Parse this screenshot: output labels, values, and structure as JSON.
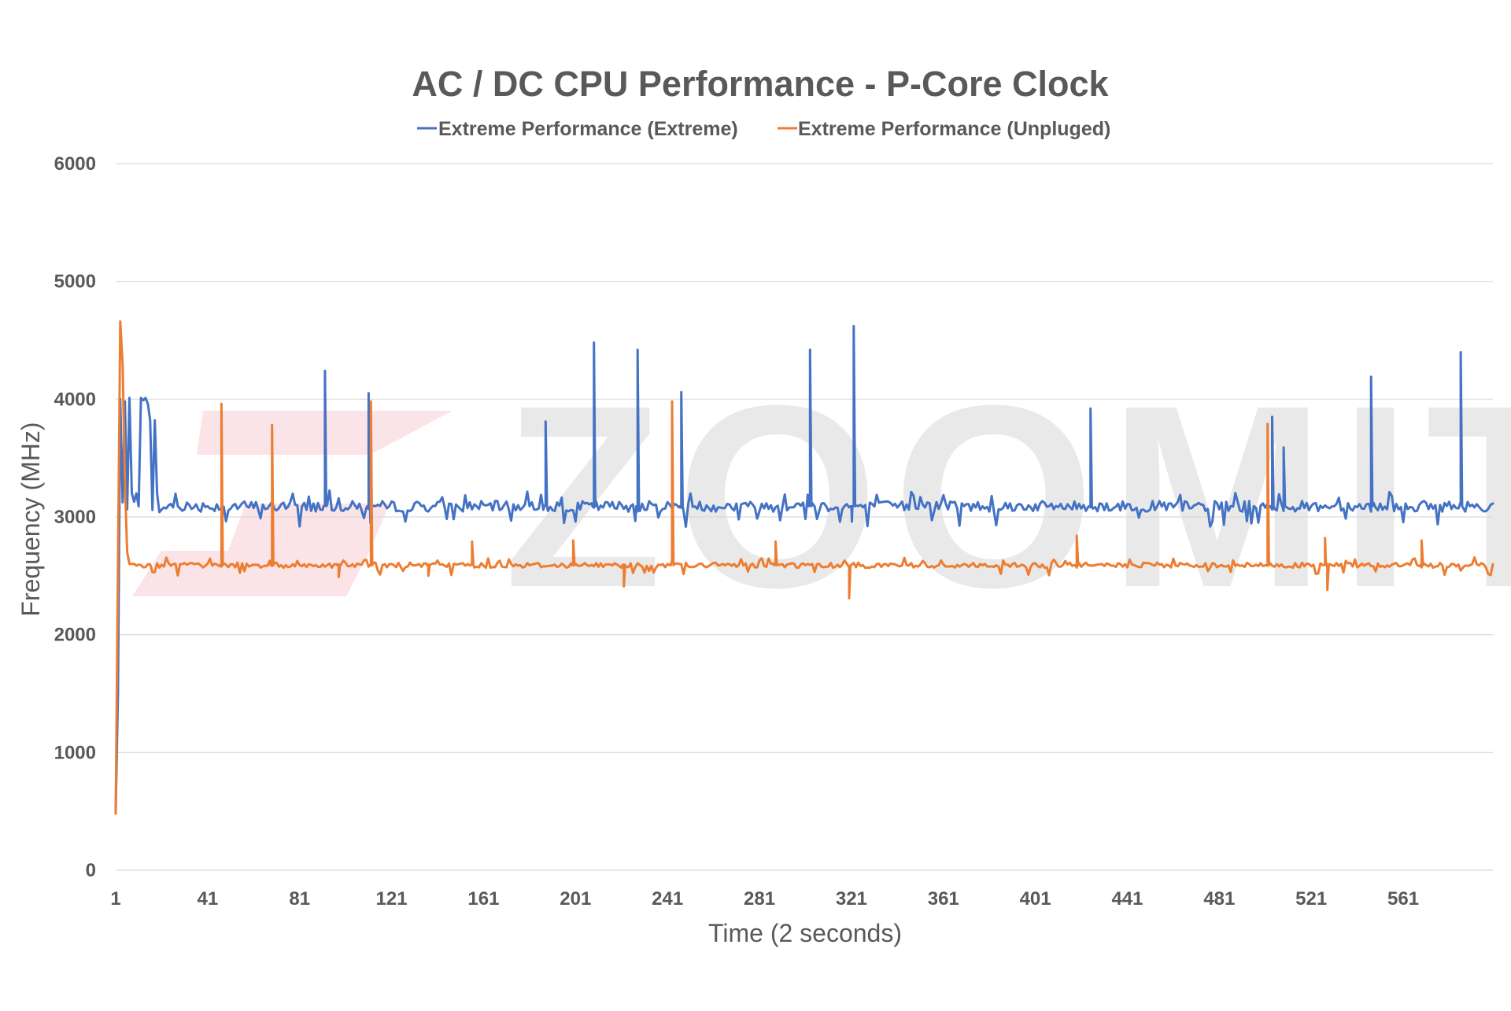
{
  "chart_data": {
    "type": "line",
    "title": "AC / DC CPU Performance - P-Core Clock",
    "xlabel": "Time (2 seconds)",
    "ylabel": "Frequency (MHz)",
    "xlim": [
      1,
      600
    ],
    "ylim": [
      0,
      6000
    ],
    "yticks": [
      0,
      1000,
      2000,
      3000,
      4000,
      5000,
      6000
    ],
    "xticks": [
      1,
      41,
      81,
      121,
      161,
      201,
      241,
      281,
      321,
      361,
      401,
      441,
      481,
      521,
      561
    ],
    "grid": true,
    "legend_position": "top-center",
    "watermark": "ZOOMIT",
    "series": [
      {
        "name": "Extreme Performance (Extreme)",
        "color": "#4472c4",
        "baseline": 3090,
        "variation": 45,
        "points": [
          [
            1,
            500
          ],
          [
            2,
            1500
          ],
          [
            3,
            4000
          ],
          [
            5,
            3980
          ],
          [
            7,
            4010
          ],
          [
            12,
            4010
          ],
          [
            13,
            3990
          ],
          [
            14,
            4010
          ],
          [
            15,
            3960
          ],
          [
            16,
            3820
          ],
          [
            18,
            3820
          ],
          [
            19,
            3200
          ],
          [
            20,
            3040
          ],
          [
            22,
            3080
          ]
        ],
        "spikes": [
          [
            92,
            4240
          ],
          [
            111,
            4050
          ],
          [
            111.8,
            2950
          ],
          [
            188,
            3810
          ],
          [
            209,
            4480
          ],
          [
            228,
            4420
          ],
          [
            247,
            4060
          ],
          [
            303,
            4420
          ],
          [
            322,
            4620
          ],
          [
            321.2,
            2960
          ],
          [
            425,
            3920
          ],
          [
            504,
            3850
          ],
          [
            509,
            3590
          ],
          [
            547,
            4190
          ],
          [
            586,
            4400
          ]
        ]
      },
      {
        "name": "Extreme Performance (Unpluged)",
        "color": "#ed7d31",
        "baseline": 2590,
        "variation": 22,
        "points": [
          [
            1,
            480
          ],
          [
            2,
            2600
          ],
          [
            3,
            4660
          ],
          [
            4,
            4300
          ],
          [
            5,
            3300
          ],
          [
            6,
            2700
          ],
          [
            8,
            2600
          ]
        ],
        "spikes": [
          [
            47,
            3960
          ],
          [
            69,
            3780
          ],
          [
            112,
            3980
          ],
          [
            243,
            3980
          ],
          [
            502,
            3790
          ],
          [
            156,
            2790
          ],
          [
            200,
            2800
          ],
          [
            288,
            2790
          ],
          [
            419,
            2840
          ],
          [
            527,
            2820
          ],
          [
            569,
            2800
          ],
          [
            222,
            2410
          ],
          [
            320,
            2310
          ],
          [
            528,
            2380
          ],
          [
            98,
            2490
          ],
          [
            137,
            2500
          ]
        ]
      }
    ]
  }
}
